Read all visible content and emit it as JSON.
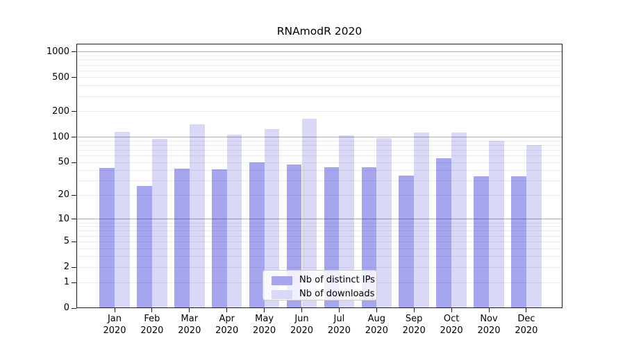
{
  "page": {
    "background": "#ffffff"
  },
  "chart_data": {
    "type": "bar",
    "title": "RNAmodR 2020",
    "categories": [
      "Jan 2020",
      "Feb 2020",
      "Mar 2020",
      "Apr 2020",
      "May 2020",
      "Jun 2020",
      "Jul 2020",
      "Aug 2020",
      "Sep 2020",
      "Oct 2020",
      "Nov 2020",
      "Dec 2020"
    ],
    "series": [
      {
        "name": "Nb of distinct IPs",
        "color": "#a5a5f0",
        "values": [
          43,
          26,
          42,
          41,
          50,
          47,
          44,
          44,
          35,
          56,
          34,
          34
        ]
      },
      {
        "name": "Nb of downloads",
        "color": "#d9d9f7",
        "values": [
          116,
          95,
          141,
          106,
          124,
          164,
          105,
          97,
          113,
          114,
          91,
          80
        ]
      }
    ],
    "y_ticks": [
      0,
      1,
      2,
      5,
      10,
      20,
      50,
      100,
      200,
      500,
      1000
    ],
    "y_scale": "log10(1+x)",
    "ylim": [
      0,
      1250
    ],
    "xlabel": "",
    "ylabel": "",
    "grid": "horizontal, minor light + decade dark, drawn over bars",
    "legend": {
      "position": "lower center",
      "entries": [
        "Nb of distinct IPs",
        "Nb of downloads"
      ]
    }
  }
}
